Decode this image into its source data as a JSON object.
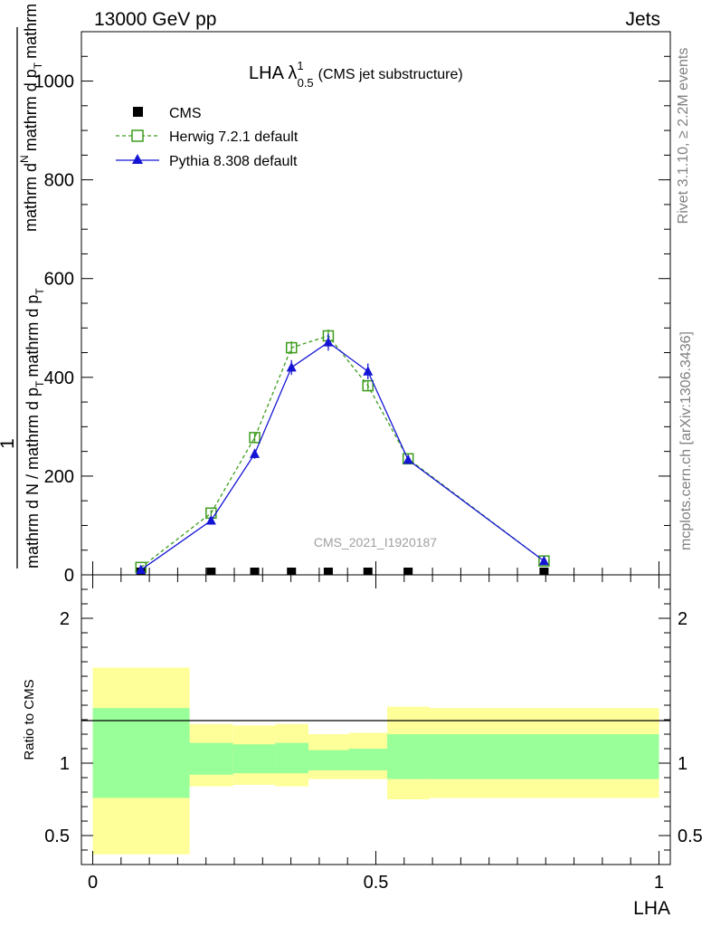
{
  "header": {
    "energy": "13000 GeV pp",
    "category": "Jets"
  },
  "side": {
    "rivet": "Rivet 3.1.10, ≥ 2.2M events",
    "mcplots": "mcplots.cern.ch [arXiv:1306.3436]"
  },
  "chart_data": [
    {
      "type": "line",
      "title": {
        "main": "LHA λ",
        "sup": "1",
        "sub": "0.5",
        "extra": "(CMS jet substructure)"
      },
      "watermark": "CMS_2021_I1920187",
      "ylabel": {
        "prefix": "1",
        "den1": "mathrm d N / mathrm d p",
        "den2": "T",
        "den3": "mathrm d p",
        "den4": "T",
        "num1": "mathrm d",
        "num2": "N",
        "num3": "mathrm d p",
        "num4": "T",
        "num5": "mathrm d lambda"
      },
      "xlim": [
        -0.02,
        1.02
      ],
      "ylim": [
        0,
        1100
      ],
      "yticks": [
        0,
        200,
        400,
        600,
        800,
        1000
      ],
      "ytick_labels": [
        "0",
        "200",
        "400",
        "600",
        "800",
        "1000"
      ],
      "grid": false,
      "legend_position": "top-left",
      "series": [
        {
          "name": "CMS",
          "color": "#000000",
          "marker": "square-filled",
          "x": [
            0.085,
            0.209,
            0.286,
            0.351,
            0.416,
            0.486,
            0.557,
            0.797
          ],
          "y": [
            0,
            0,
            0,
            0,
            0,
            0,
            0,
            0
          ]
        },
        {
          "name": "Herwig 7.2.1 default",
          "color": "#3c9c1c",
          "marker": "square-open",
          "dashed": true,
          "x": [
            0.085,
            0.209,
            0.286,
            0.351,
            0.416,
            0.486,
            0.557,
            0.797
          ],
          "y": [
            15,
            125,
            278,
            460,
            484,
            383,
            235,
            28
          ],
          "err": [
            3,
            6,
            9,
            13,
            13,
            11,
            9,
            3
          ]
        },
        {
          "name": "Pythia 8.308 default",
          "color": "#1414d4",
          "marker": "triangle-filled",
          "dashed": false,
          "x": [
            0.085,
            0.209,
            0.286,
            0.351,
            0.416,
            0.486,
            0.557,
            0.797
          ],
          "y": [
            10,
            110,
            245,
            420,
            471,
            412,
            233,
            28
          ],
          "err": [
            3,
            6,
            10,
            15,
            17,
            16,
            9,
            3
          ]
        }
      ]
    },
    {
      "type": "area",
      "ylabel": "Ratio to CMS",
      "xlabel": "LHA",
      "xlim": [
        -0.02,
        1.02
      ],
      "ylim": [
        0.3,
        2.3
      ],
      "xticks": [
        0,
        0.5,
        1
      ],
      "xtick_labels": [
        "0",
        "0.5",
        "1"
      ],
      "yticks": [
        0.5,
        1,
        2
      ],
      "ytick_labels": [
        "0.5",
        "1",
        "2"
      ],
      "bins": [
        {
          "x0": 0.0,
          "x1": 0.171,
          "yellow": [
            0.37,
            1.66
          ],
          "green": [
            0.76,
            1.38
          ]
        },
        {
          "x0": 0.171,
          "x1": 0.248,
          "yellow": [
            0.84,
            1.27
          ],
          "green": [
            0.92,
            1.14
          ]
        },
        {
          "x0": 0.248,
          "x1": 0.322,
          "yellow": [
            0.85,
            1.26
          ],
          "green": [
            0.93,
            1.13
          ]
        },
        {
          "x0": 0.322,
          "x1": 0.381,
          "yellow": [
            0.84,
            1.27
          ],
          "green": [
            0.93,
            1.14
          ]
        },
        {
          "x0": 0.381,
          "x1": 0.452,
          "yellow": [
            0.89,
            1.2
          ],
          "green": [
            0.95,
            1.09
          ]
        },
        {
          "x0": 0.452,
          "x1": 0.52,
          "yellow": [
            0.89,
            1.21
          ],
          "green": [
            0.95,
            1.1
          ]
        },
        {
          "x0": 0.52,
          "x1": 0.595,
          "yellow": [
            0.75,
            1.39
          ],
          "green": [
            0.89,
            1.2
          ]
        },
        {
          "x0": 0.595,
          "x1": 1.0,
          "yellow": [
            0.76,
            1.38
          ],
          "green": [
            0.89,
            1.2
          ]
        }
      ]
    }
  ]
}
